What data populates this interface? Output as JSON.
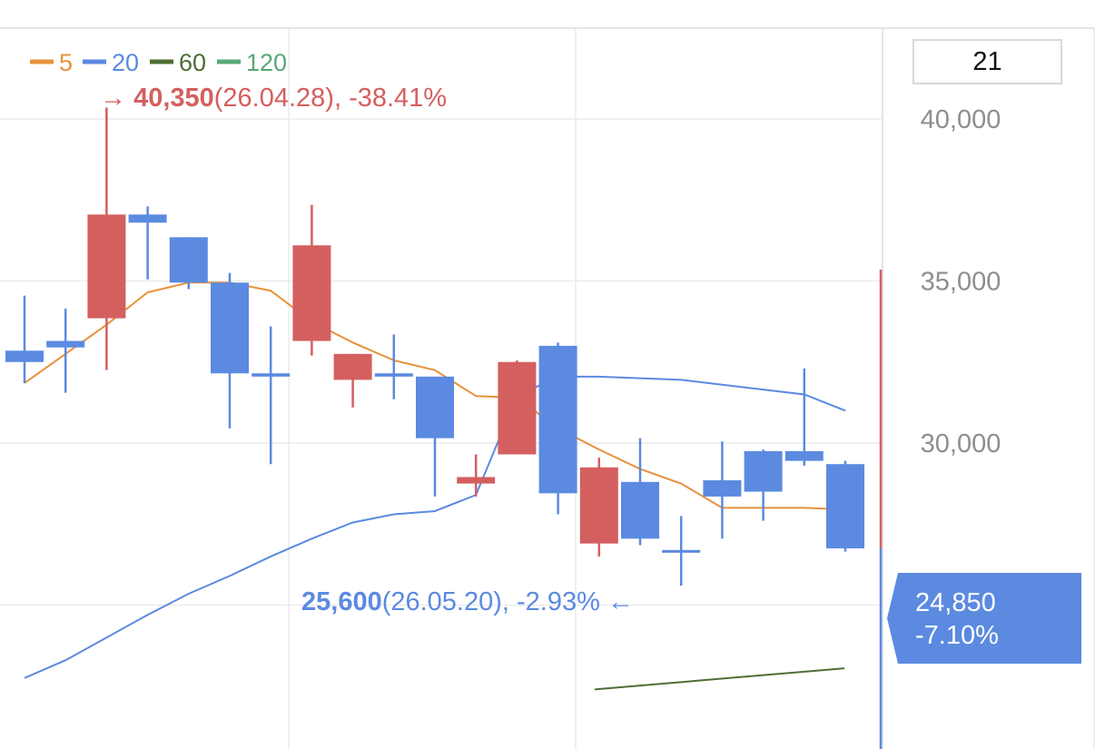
{
  "period_selector": {
    "value": "21"
  },
  "legend": [
    {
      "label": "5",
      "color": "#e8913a"
    },
    {
      "label": "20",
      "color": "#5b8ae0"
    },
    {
      "label": "60",
      "color": "#4d6e33"
    },
    {
      "label": "120",
      "color": "#5aa877"
    }
  ],
  "annotations": {
    "high": {
      "arrow": "→",
      "value": "40,350",
      "detail": "(26.04.28), -38.41%",
      "color": "#d45f5f"
    },
    "low": {
      "arrow": "←",
      "value": "25,600",
      "detail": "(26.05.20), -2.93%",
      "color": "#5b8ae0"
    }
  },
  "current_price": {
    "price": "24,850",
    "change": "-7.10%",
    "color": "#5b8ae0"
  },
  "colors": {
    "up": "#d45f5f",
    "down": "#5b8ae0",
    "ma5": "#e8913a",
    "ma20": "#5b8ae0",
    "ma60": "#4d6e33",
    "grid": "#ececec",
    "axis_text": "#8e8e8e"
  },
  "chart_data": {
    "type": "candlestick",
    "y_axis": {
      "ticks": [
        30000,
        35000,
        40000
      ],
      "tick_labels": [
        "30,000",
        "35,000",
        "40,000"
      ],
      "position": "right"
    },
    "candles": [
      {
        "open": 32850,
        "high": 34550,
        "low": 31850,
        "close": 32500
      },
      {
        "open": 33150,
        "high": 34150,
        "low": 31550,
        "close": 32950
      },
      {
        "open": 33850,
        "high": 40350,
        "low": 32250,
        "close": 37050
      },
      {
        "open": 37050,
        "high": 37300,
        "low": 35050,
        "close": 36800
      },
      {
        "open": 36350,
        "high": 36350,
        "low": 34750,
        "close": 34950
      },
      {
        "open": 34950,
        "high": 35250,
        "low": 30450,
        "close": 32150
      },
      {
        "open": 32150,
        "high": 33600,
        "low": 29350,
        "close": 32050
      },
      {
        "open": 33150,
        "high": 37350,
        "low": 32700,
        "close": 36100
      },
      {
        "open": 31950,
        "high": 32750,
        "low": 31100,
        "close": 32750
      },
      {
        "open": 32150,
        "high": 33350,
        "low": 31350,
        "close": 32050
      },
      {
        "open": 32050,
        "high": 32050,
        "low": 28350,
        "close": 30150
      },
      {
        "open": 28750,
        "high": 29650,
        "low": 28350,
        "close": 28950
      },
      {
        "open": 29650,
        "high": 32550,
        "low": 29650,
        "close": 32500
      },
      {
        "open": 33000,
        "high": 33100,
        "low": 27800,
        "close": 28450
      },
      {
        "open": 26900,
        "high": 29550,
        "low": 26500,
        "close": 29250
      },
      {
        "open": 28800,
        "high": 30150,
        "low": 26850,
        "close": 27050
      },
      {
        "open": 26700,
        "high": 27750,
        "low": 25600,
        "close": 26650
      },
      {
        "open": 28850,
        "high": 30050,
        "low": 27050,
        "close": 28350
      },
      {
        "open": 29750,
        "high": 29800,
        "low": 27600,
        "close": 28500
      },
      {
        "open": 29750,
        "high": 32300,
        "low": 29300,
        "close": 29450
      },
      {
        "open": 29350,
        "high": 29450,
        "low": 26650,
        "close": 26750
      }
    ],
    "ma5": [
      31850,
      32750,
      33650,
      34650,
      34950,
      34950,
      34700,
      33750,
      33100,
      32550,
      32250,
      31450,
      31400,
      30450,
      29800,
      29200,
      28750,
      28000,
      28000,
      28000,
      27950
    ],
    "ma20": [
      22750,
      23300,
      24000,
      24700,
      25350,
      25900,
      26500,
      27050,
      27550,
      27800,
      27900,
      28400,
      31450,
      32050,
      32050,
      32000,
      31950,
      31800,
      31650,
      31500,
      31000
    ],
    "ma60": [
      22400,
      23050
    ],
    "today_range": {
      "high": 35350,
      "low": 19800
    }
  }
}
